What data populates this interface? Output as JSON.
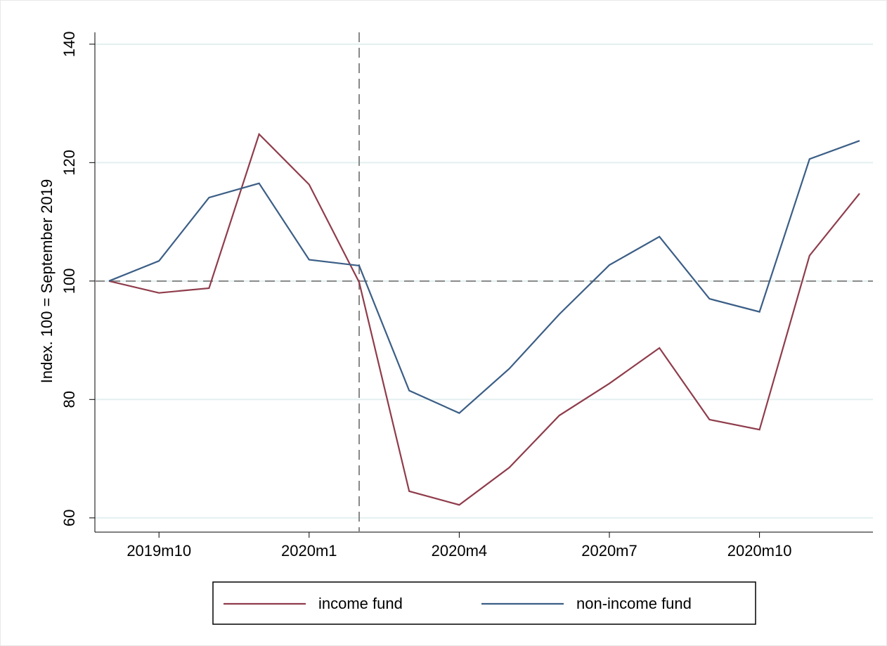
{
  "chart_data": {
    "type": "line",
    "y_label": "Index. 100 = September 2019",
    "categories": [
      null,
      "2019m10",
      null,
      null,
      "2020m1",
      null,
      null,
      "2020m4",
      null,
      null,
      "2020m7",
      null,
      null,
      "2020m10",
      null,
      null
    ],
    "series": [
      {
        "name": "income fund",
        "color": "#8f3c4b",
        "values": [
          100,
          98.0,
          98.8,
          124.8,
          116.3,
          99.8,
          64.5,
          62.2,
          68.5,
          77.3,
          82.7,
          88.7,
          76.6,
          74.9,
          104.3,
          114.8
        ]
      },
      {
        "name": "non-income fund",
        "color": "#3b5e86",
        "values": [
          100,
          103.4,
          114.1,
          116.5,
          103.6,
          102.6,
          81.5,
          77.7,
          85.2,
          94.4,
          102.7,
          107.5,
          97.0,
          94.8,
          120.6,
          123.7
        ]
      }
    ],
    "ylim": [
      57.6,
      142
    ],
    "yticks": [
      60,
      80,
      100,
      120,
      140
    ],
    "grid": true,
    "reference_lines": {
      "x": 5,
      "y": 100
    },
    "legend": "bottom"
  }
}
